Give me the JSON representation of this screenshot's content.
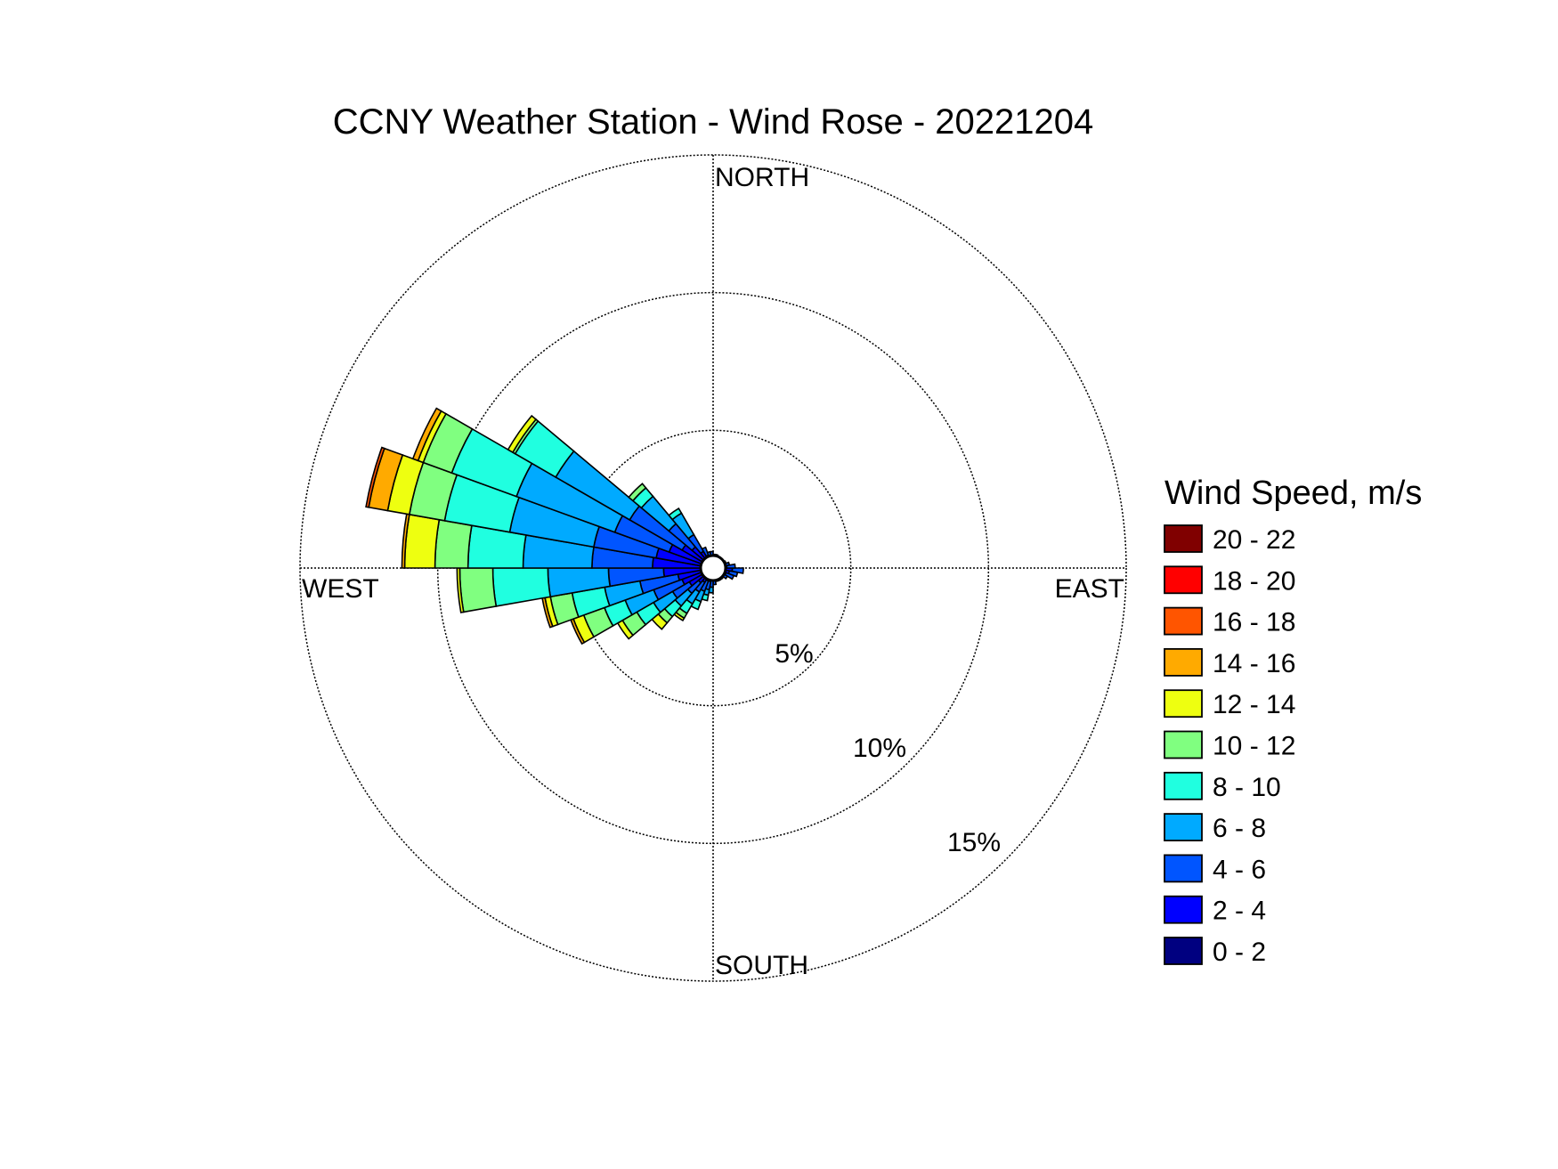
{
  "chart_data": {
    "type": "windrose",
    "title": "CCNY Weather Station - Wind Rose - 20221204",
    "directions": {
      "north": "NORTH",
      "south": "SOUTH",
      "east": "EAST",
      "west": "WEST"
    },
    "radial_axis": {
      "unit": "%",
      "max": 15,
      "rings": [
        5,
        10,
        15
      ],
      "ring_labels": [
        "5%",
        "10%",
        "15%"
      ]
    },
    "legend": {
      "title": "Wind Speed, m/s",
      "bins": [
        {
          "label": "20 - 22",
          "color": "#800000"
        },
        {
          "label": "18 - 20",
          "color": "#ff0000"
        },
        {
          "label": "16 - 18",
          "color": "#ff5500"
        },
        {
          "label": "14 - 16",
          "color": "#ffaa00"
        },
        {
          "label": "12 - 14",
          "color": "#eeff10"
        },
        {
          "label": "10 - 12",
          "color": "#80ff80"
        },
        {
          "label": "8 - 10",
          "color": "#20ffe0"
        },
        {
          "label": "6 - 8",
          "color": "#00aaff"
        },
        {
          "label": "4 - 6",
          "color": "#0055ff"
        },
        {
          "label": "2 - 4",
          "color": "#0000ff"
        },
        {
          "label": "0 - 2",
          "color": "#000080"
        }
      ]
    },
    "bin_order_inner_to_outer": [
      "0 - 2",
      "2 - 4",
      "4 - 6",
      "6 - 8",
      "8 - 10",
      "10 - 12",
      "12 - 14",
      "14 - 16",
      "16 - 18",
      "18 - 20",
      "20 - 22"
    ],
    "sector_width_deg": 10,
    "sectors": [
      {
        "direction_deg": 95,
        "cumulative_pct": [
          0.2,
          0.7,
          1.1
        ]
      },
      {
        "direction_deg": 105,
        "cumulative_pct": [
          0.2,
          0.6,
          0.9
        ]
      },
      {
        "direction_deg": 115,
        "cumulative_pct": [
          0.2,
          0.5,
          0.8
        ]
      },
      {
        "direction_deg": 175,
        "cumulative_pct": [
          0.2,
          0.4,
          0.6
        ]
      },
      {
        "direction_deg": 185,
        "cumulative_pct": [
          0.2,
          0.4,
          0.7,
          0.9
        ]
      },
      {
        "direction_deg": 195,
        "cumulative_pct": [
          0.2,
          0.5,
          0.8,
          1.0,
          1.2
        ]
      },
      {
        "direction_deg": 205,
        "cumulative_pct": [
          0.2,
          0.5,
          0.9,
          1.3,
          1.6
        ]
      },
      {
        "direction_deg": 215,
        "cumulative_pct": [
          0.2,
          0.6,
          1.0,
          1.5,
          1.9,
          2.1,
          2.2
        ]
      },
      {
        "direction_deg": 225,
        "cumulative_pct": [
          0.2,
          0.7,
          1.2,
          1.8,
          2.3,
          2.6,
          2.9
        ]
      },
      {
        "direction_deg": 235,
        "cumulative_pct": [
          0.3,
          1.0,
          1.7,
          2.5,
          3.2,
          3.8,
          4.0
        ]
      },
      {
        "direction_deg": 245,
        "cumulative_pct": [
          0.3,
          1.2,
          2.3,
          3.4,
          4.2,
          5.0,
          5.4,
          5.5
        ]
      },
      {
        "direction_deg": 255,
        "cumulative_pct": [
          0.3,
          1.3,
          2.7,
          4.0,
          5.2,
          6.0,
          6.2,
          6.3
        ]
      },
      {
        "direction_deg": 265,
        "cumulative_pct": [
          0.3,
          1.8,
          3.8,
          6.0,
          8.0,
          9.2,
          9.3
        ]
      },
      {
        "direction_deg": 275,
        "cumulative_pct": [
          0.4,
          2.2,
          4.4,
          6.9,
          8.9,
          10.1,
          11.2,
          11.3
        ]
      },
      {
        "direction_deg": 285,
        "cumulative_pct": [
          0.4,
          2.1,
          4.4,
          7.5,
          9.9,
          11.2,
          12.0,
          12.7,
          12.8
        ]
      },
      {
        "direction_deg": 295,
        "cumulative_pct": [
          0.4,
          1.7,
          3.8,
          7.6,
          10.1,
          11.2,
          11.4,
          11.6
        ]
      },
      {
        "direction_deg": 305,
        "cumulative_pct": [
          0.3,
          1.3,
          3.5,
          6.6,
          8.3,
          8.4,
          8.6
        ]
      },
      {
        "direction_deg": 315,
        "cumulative_pct": [
          0.3,
          1.0,
          2.1,
          3.4,
          3.8,
          4.0
        ]
      },
      {
        "direction_deg": 325,
        "cumulative_pct": [
          0.2,
          0.7,
          1.4,
          2.3,
          2.5
        ]
      },
      {
        "direction_deg": 335,
        "cumulative_pct": [
          0.2,
          0.5,
          0.8
        ]
      },
      {
        "direction_deg": 345,
        "cumulative_pct": [
          0.2,
          0.4,
          0.6
        ]
      },
      {
        "direction_deg": 355,
        "cumulative_pct": [
          0.2,
          0.4,
          0.6
        ]
      },
      {
        "direction_deg": 5,
        "cumulative_pct": [
          0.2,
          0.4,
          0.5
        ]
      },
      {
        "direction_deg": 15,
        "cumulative_pct": [
          0.2,
          0.4,
          0.5
        ]
      },
      {
        "direction_deg": 25,
        "cumulative_pct": [
          0.2,
          0.3,
          0.4
        ]
      },
      {
        "direction_deg": 35,
        "cumulative_pct": [
          0.2,
          0.3,
          0.4
        ]
      },
      {
        "direction_deg": 45,
        "cumulative_pct": [
          0.2,
          0.3,
          0.4
        ]
      },
      {
        "direction_deg": 55,
        "cumulative_pct": [
          0.2,
          0.3,
          0.4
        ]
      },
      {
        "direction_deg": 65,
        "cumulative_pct": [
          0.2,
          0.3,
          0.5
        ]
      },
      {
        "direction_deg": 75,
        "cumulative_pct": [
          0.2,
          0.4,
          0.6
        ]
      },
      {
        "direction_deg": 85,
        "cumulative_pct": [
          0.2,
          0.5,
          0.8
        ]
      },
      {
        "direction_deg": 125,
        "cumulative_pct": [
          0.2,
          0.4,
          0.6
        ]
      },
      {
        "direction_deg": 135,
        "cumulative_pct": [
          0.2,
          0.4,
          0.5
        ]
      },
      {
        "direction_deg": 145,
        "cumulative_pct": [
          0.2,
          0.4,
          0.5
        ]
      },
      {
        "direction_deg": 155,
        "cumulative_pct": [
          0.2,
          0.4,
          0.5
        ]
      },
      {
        "direction_deg": 165,
        "cumulative_pct": [
          0.2,
          0.4,
          0.5
        ]
      }
    ]
  }
}
